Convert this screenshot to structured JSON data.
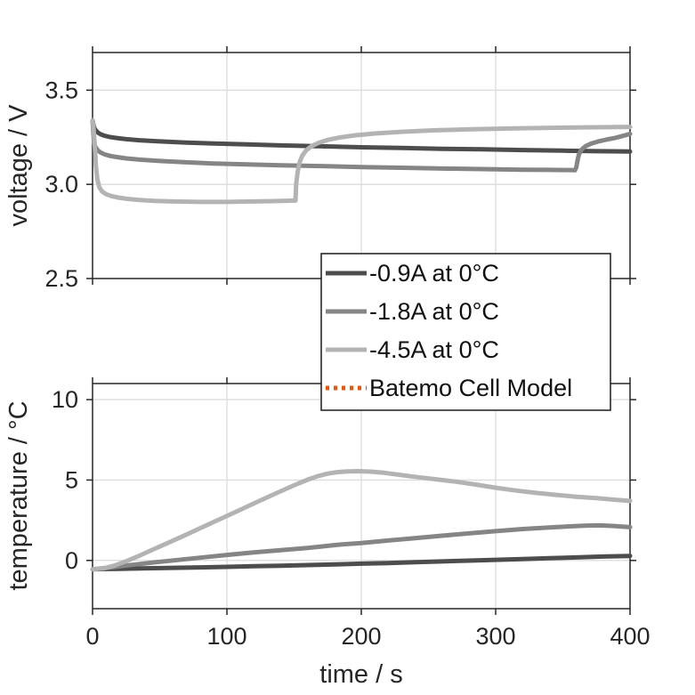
{
  "figure": {
    "background": "#ffffff",
    "axis_color": "#262626",
    "grid_color": "#dcdcdc",
    "legend": {
      "position": "center-right-between-plots",
      "items": [
        {
          "label": "-0.9A at 0°C",
          "color": "#4d4d4d",
          "style": "solid"
        },
        {
          "label": "-1.8A at 0°C",
          "color": "#858585",
          "style": "solid"
        },
        {
          "label": "-4.5A at 0°C",
          "color": "#b3b3b3",
          "style": "solid"
        },
        {
          "label": "Batemo Cell Model",
          "color": "#e8580c",
          "style": "dotted"
        }
      ]
    }
  },
  "chart_data": [
    {
      "type": "line",
      "title": "",
      "ylabel": "voltage / V",
      "xlabel": "",
      "xlim": [
        0,
        400
      ],
      "ylim": [
        2.5,
        3.7
      ],
      "xticks": [
        0,
        100,
        200,
        300,
        400
      ],
      "xtick_labels": [],
      "yticks": [
        2.5,
        3.0,
        3.5
      ],
      "ytick_labels": [
        "2.5",
        "3.0",
        "3.5"
      ],
      "grid": true,
      "series": [
        {
          "name": "-0.9A at 0°C",
          "color": "#4d4d4d",
          "points": [
            [
              0,
              3.34
            ],
            [
              1,
              3.305
            ],
            [
              2,
              3.29
            ],
            [
              4,
              3.275
            ],
            [
              6,
              3.266
            ],
            [
              9,
              3.258
            ],
            [
              13,
              3.251
            ],
            [
              18,
              3.246
            ],
            [
              25,
              3.24
            ],
            [
              35,
              3.234
            ],
            [
              50,
              3.228
            ],
            [
              70,
              3.222
            ],
            [
              90,
              3.217
            ],
            [
              115,
              3.212
            ],
            [
              140,
              3.207
            ],
            [
              170,
              3.202
            ],
            [
              200,
              3.197
            ],
            [
              230,
              3.193
            ],
            [
              260,
              3.189
            ],
            [
              290,
              3.186
            ],
            [
              320,
              3.182
            ],
            [
              350,
              3.179
            ],
            [
              375,
              3.176
            ],
            [
              400,
              3.174
            ]
          ]
        },
        {
          "name": "-1.8A at 0°C",
          "color": "#858585",
          "points": [
            [
              0,
              3.34
            ],
            [
              1,
              3.23
            ],
            [
              2,
              3.2
            ],
            [
              4,
              3.18
            ],
            [
              6,
              3.169
            ],
            [
              9,
              3.159
            ],
            [
              13,
              3.151
            ],
            [
              18,
              3.145
            ],
            [
              25,
              3.138
            ],
            [
              35,
              3.131
            ],
            [
              50,
              3.124
            ],
            [
              70,
              3.117
            ],
            [
              90,
              3.111
            ],
            [
              115,
              3.106
            ],
            [
              140,
              3.101
            ],
            [
              170,
              3.097
            ],
            [
              200,
              3.092
            ],
            [
              230,
              3.088
            ],
            [
              260,
              3.084
            ],
            [
              290,
              3.081
            ],
            [
              320,
              3.078
            ],
            [
              340,
              3.077
            ],
            [
              355,
              3.076
            ],
            [
              359,
              3.075
            ],
            [
              360,
              3.09
            ],
            [
              361,
              3.13
            ],
            [
              362,
              3.16
            ],
            [
              364,
              3.185
            ],
            [
              367,
              3.203
            ],
            [
              371,
              3.216
            ],
            [
              376,
              3.227
            ],
            [
              382,
              3.237
            ],
            [
              389,
              3.247
            ],
            [
              395,
              3.258
            ],
            [
              400,
              3.268
            ]
          ]
        },
        {
          "name": "-4.5A at 0°C",
          "color": "#b3b3b3",
          "points": [
            [
              0,
              3.34
            ],
            [
              0.7,
              3.3
            ],
            [
              1.5,
              3.22
            ],
            [
              2.5,
              3.1
            ],
            [
              3.5,
              3.03
            ],
            [
              5,
              2.985
            ],
            [
              7,
              2.963
            ],
            [
              10,
              2.948
            ],
            [
              14,
              2.938
            ],
            [
              19,
              2.93
            ],
            [
              26,
              2.923
            ],
            [
              35,
              2.917
            ],
            [
              46,
              2.9125
            ],
            [
              60,
              2.909
            ],
            [
              80,
              2.907
            ],
            [
              100,
              2.907
            ],
            [
              120,
              2.909
            ],
            [
              135,
              2.911
            ],
            [
              148,
              2.9135
            ],
            [
              151,
              2.914
            ],
            [
              151.5,
              3.0
            ],
            [
              152.5,
              3.06
            ],
            [
              154,
              3.115
            ],
            [
              156,
              3.152
            ],
            [
              159,
              3.181
            ],
            [
              163,
              3.203
            ],
            [
              168,
              3.22
            ],
            [
              175,
              3.236
            ],
            [
              184,
              3.249
            ],
            [
              195,
              3.26
            ],
            [
              210,
              3.27
            ],
            [
              230,
              3.279
            ],
            [
              255,
              3.287
            ],
            [
              285,
              3.293
            ],
            [
              320,
              3.298
            ],
            [
              360,
              3.302
            ],
            [
              400,
              3.305
            ]
          ]
        }
      ]
    },
    {
      "type": "line",
      "title": "",
      "ylabel": "temperature / °C",
      "xlabel": "time / s",
      "xlim": [
        0,
        400
      ],
      "ylim": [
        -3,
        11
      ],
      "xticks": [
        0,
        100,
        200,
        300,
        400
      ],
      "xtick_labels": [
        "0",
        "100",
        "200",
        "300",
        "400"
      ],
      "yticks": [
        0,
        5,
        10
      ],
      "ytick_labels": [
        "0",
        "5",
        "10"
      ],
      "grid": true,
      "series": [
        {
          "name": "-0.9A at 0°C",
          "color": "#4d4d4d",
          "points": [
            [
              0,
              -0.55
            ],
            [
              20,
              -0.52
            ],
            [
              40,
              -0.49
            ],
            [
              60,
              -0.46
            ],
            [
              80,
              -0.43
            ],
            [
              100,
              -0.4
            ],
            [
              120,
              -0.36
            ],
            [
              140,
              -0.33
            ],
            [
              160,
              -0.29
            ],
            [
              180,
              -0.25
            ],
            [
              200,
              -0.2
            ],
            [
              220,
              -0.16
            ],
            [
              240,
              -0.11
            ],
            [
              260,
              -0.06
            ],
            [
              280,
              -0.01
            ],
            [
              300,
              0.04
            ],
            [
              320,
              0.09
            ],
            [
              340,
              0.14
            ],
            [
              360,
              0.19
            ],
            [
              380,
              0.24
            ],
            [
              400,
              0.28
            ]
          ]
        },
        {
          "name": "-1.8A at 0°C",
          "color": "#858585",
          "points": [
            [
              0,
              -0.55
            ],
            [
              15,
              -0.42
            ],
            [
              30,
              -0.27
            ],
            [
              45,
              -0.13
            ],
            [
              60,
              0.0
            ],
            [
              80,
              0.17
            ],
            [
              100,
              0.34
            ],
            [
              120,
              0.5
            ],
            [
              140,
              0.64
            ],
            [
              160,
              0.78
            ],
            [
              183,
              0.98
            ],
            [
              200,
              1.08
            ],
            [
              220,
              1.24
            ],
            [
              240,
              1.39
            ],
            [
              260,
              1.54
            ],
            [
              280,
              1.68
            ],
            [
              300,
              1.82
            ],
            [
              320,
              1.95
            ],
            [
              340,
              2.05
            ],
            [
              355,
              2.12
            ],
            [
              368,
              2.17
            ],
            [
              378,
              2.18
            ],
            [
              388,
              2.14
            ],
            [
              400,
              2.07
            ]
          ]
        },
        {
          "name": "-4.5A at 0°C",
          "color": "#b3b3b3",
          "points": [
            [
              0,
              -0.55
            ],
            [
              8,
              -0.5
            ],
            [
              16,
              -0.33
            ],
            [
              25,
              -0.05
            ],
            [
              35,
              0.3
            ],
            [
              45,
              0.68
            ],
            [
              55,
              1.05
            ],
            [
              67,
              1.5
            ],
            [
              80,
              2.0
            ],
            [
              93,
              2.5
            ],
            [
              106,
              3.0
            ],
            [
              119,
              3.5
            ],
            [
              132,
              4.0
            ],
            [
              144,
              4.45
            ],
            [
              153,
              4.78
            ],
            [
              161,
              5.05
            ],
            [
              168,
              5.25
            ],
            [
              175,
              5.4
            ],
            [
              182,
              5.49
            ],
            [
              190,
              5.54
            ],
            [
              198,
              5.55
            ],
            [
              207,
              5.52
            ],
            [
              217,
              5.45
            ],
            [
              228,
              5.33
            ],
            [
              240,
              5.2
            ],
            [
              255,
              5.05
            ],
            [
              270,
              4.9
            ],
            [
              285,
              4.72
            ],
            [
              300,
              4.52
            ],
            [
              315,
              4.35
            ],
            [
              330,
              4.2
            ],
            [
              345,
              4.08
            ],
            [
              360,
              3.96
            ],
            [
              375,
              3.87
            ],
            [
              388,
              3.78
            ],
            [
              400,
              3.7
            ]
          ]
        }
      ]
    }
  ]
}
